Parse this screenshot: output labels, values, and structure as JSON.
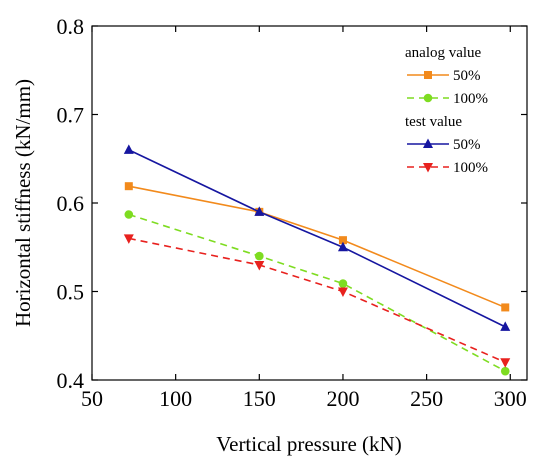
{
  "chart_data": {
    "type": "line",
    "xlabel": "Vertical pressure (kN)",
    "ylabel": "Horizontal stiffness (kN/mm)",
    "xlim": [
      50,
      310
    ],
    "ylim": [
      0.4,
      0.8
    ],
    "xticks": [
      50,
      100,
      150,
      200,
      250,
      300
    ],
    "xtick_labels": [
      "50",
      "100",
      "150",
      "200",
      "250",
      "300"
    ],
    "yticks": [
      0.4,
      0.5,
      0.6,
      0.7,
      0.8
    ],
    "ytick_labels": [
      "0.4",
      "0.5",
      "0.6",
      "0.7",
      "0.8"
    ],
    "grid": false,
    "legend_placement": "top-right",
    "legend_groups": [
      {
        "title": "analog value",
        "series": [
          0,
          1
        ]
      },
      {
        "title": "test value",
        "series": [
          2,
          3
        ]
      }
    ],
    "x": [
      72,
      150,
      200,
      297
    ],
    "series": [
      {
        "name": "50%",
        "group": "analog value",
        "color": "#F28A1C",
        "dash": "solid",
        "marker": "square",
        "values": [
          0.619,
          0.59,
          0.558,
          0.482
        ]
      },
      {
        "name": "100%",
        "group": "analog value",
        "color": "#7EDC21",
        "dash": "dashed",
        "marker": "circle",
        "values": [
          0.587,
          0.54,
          0.509,
          0.41
        ]
      },
      {
        "name": "50%",
        "group": "test value",
        "color": "#1616A0",
        "dash": "solid",
        "marker": "triangle-up",
        "values": [
          0.66,
          0.59,
          0.55,
          0.46
        ]
      },
      {
        "name": "100%",
        "group": "test value",
        "color": "#E8211E",
        "dash": "dashed",
        "marker": "triangle-down",
        "values": [
          0.56,
          0.53,
          0.5,
          0.42
        ]
      }
    ]
  }
}
